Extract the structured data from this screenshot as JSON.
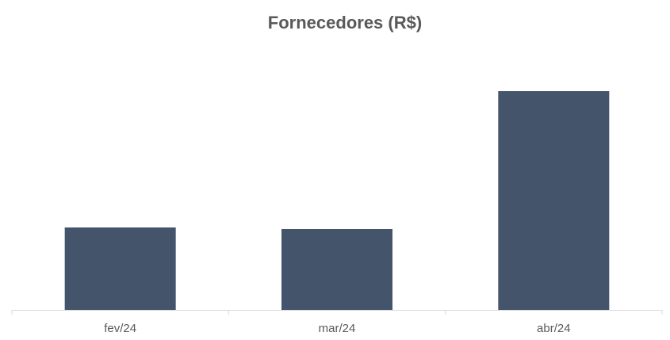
{
  "chart_data": {
    "type": "bar",
    "title": "Fornecedores (R$)",
    "categories": [
      "fev/24",
      "mar/24",
      "abr/24"
    ],
    "values": [
      104,
      102,
      276
    ],
    "color": "#44546a",
    "ylim": [
      0,
      311
    ]
  }
}
